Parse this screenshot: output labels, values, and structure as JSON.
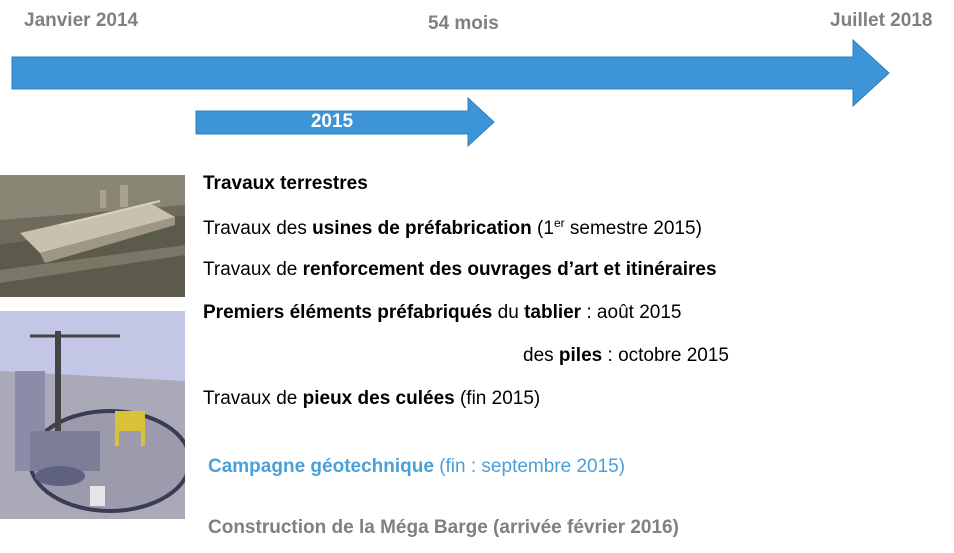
{
  "timeline": {
    "start_label": "Janvier 2014",
    "duration_label": "54 mois",
    "end_label": "Juillet 2018",
    "sub_arrow_label": "2015",
    "arrow_color": "#3d94d6"
  },
  "images": [
    {
      "name": "prefabrication-site-photo"
    },
    {
      "name": "construction-site-3d-render"
    }
  ],
  "items": {
    "l1": {
      "bold": "Travaux terrestres"
    },
    "l2": {
      "pre": "Travaux des ",
      "bold": "usines de préfabrication",
      "post_a": " (1",
      "sup": "er",
      "post_b": " semestre 2015)"
    },
    "l3": {
      "pre": "Travaux de ",
      "bold": "renforcement des ouvrages d’art et itinéraires"
    },
    "l4": {
      "bold_a": "Premiers éléments préfabriqués",
      "mid": " du ",
      "bold_b": "tablier",
      "post": " : août 2015"
    },
    "l5": {
      "pre": "des ",
      "bold": "piles",
      "post": " : octobre 2015"
    },
    "l6": {
      "pre": "Travaux de ",
      "bold": "pieux des culées",
      "post": " (fin 2015)"
    },
    "l7": {
      "bold": "Campagne géotechnique",
      "post": " (fin : septembre 2015)",
      "color": "#4aa0d8"
    },
    "l8": {
      "text": "Construction de la Méga Barge (arrivée février 2016)",
      "color": "#808080"
    }
  }
}
